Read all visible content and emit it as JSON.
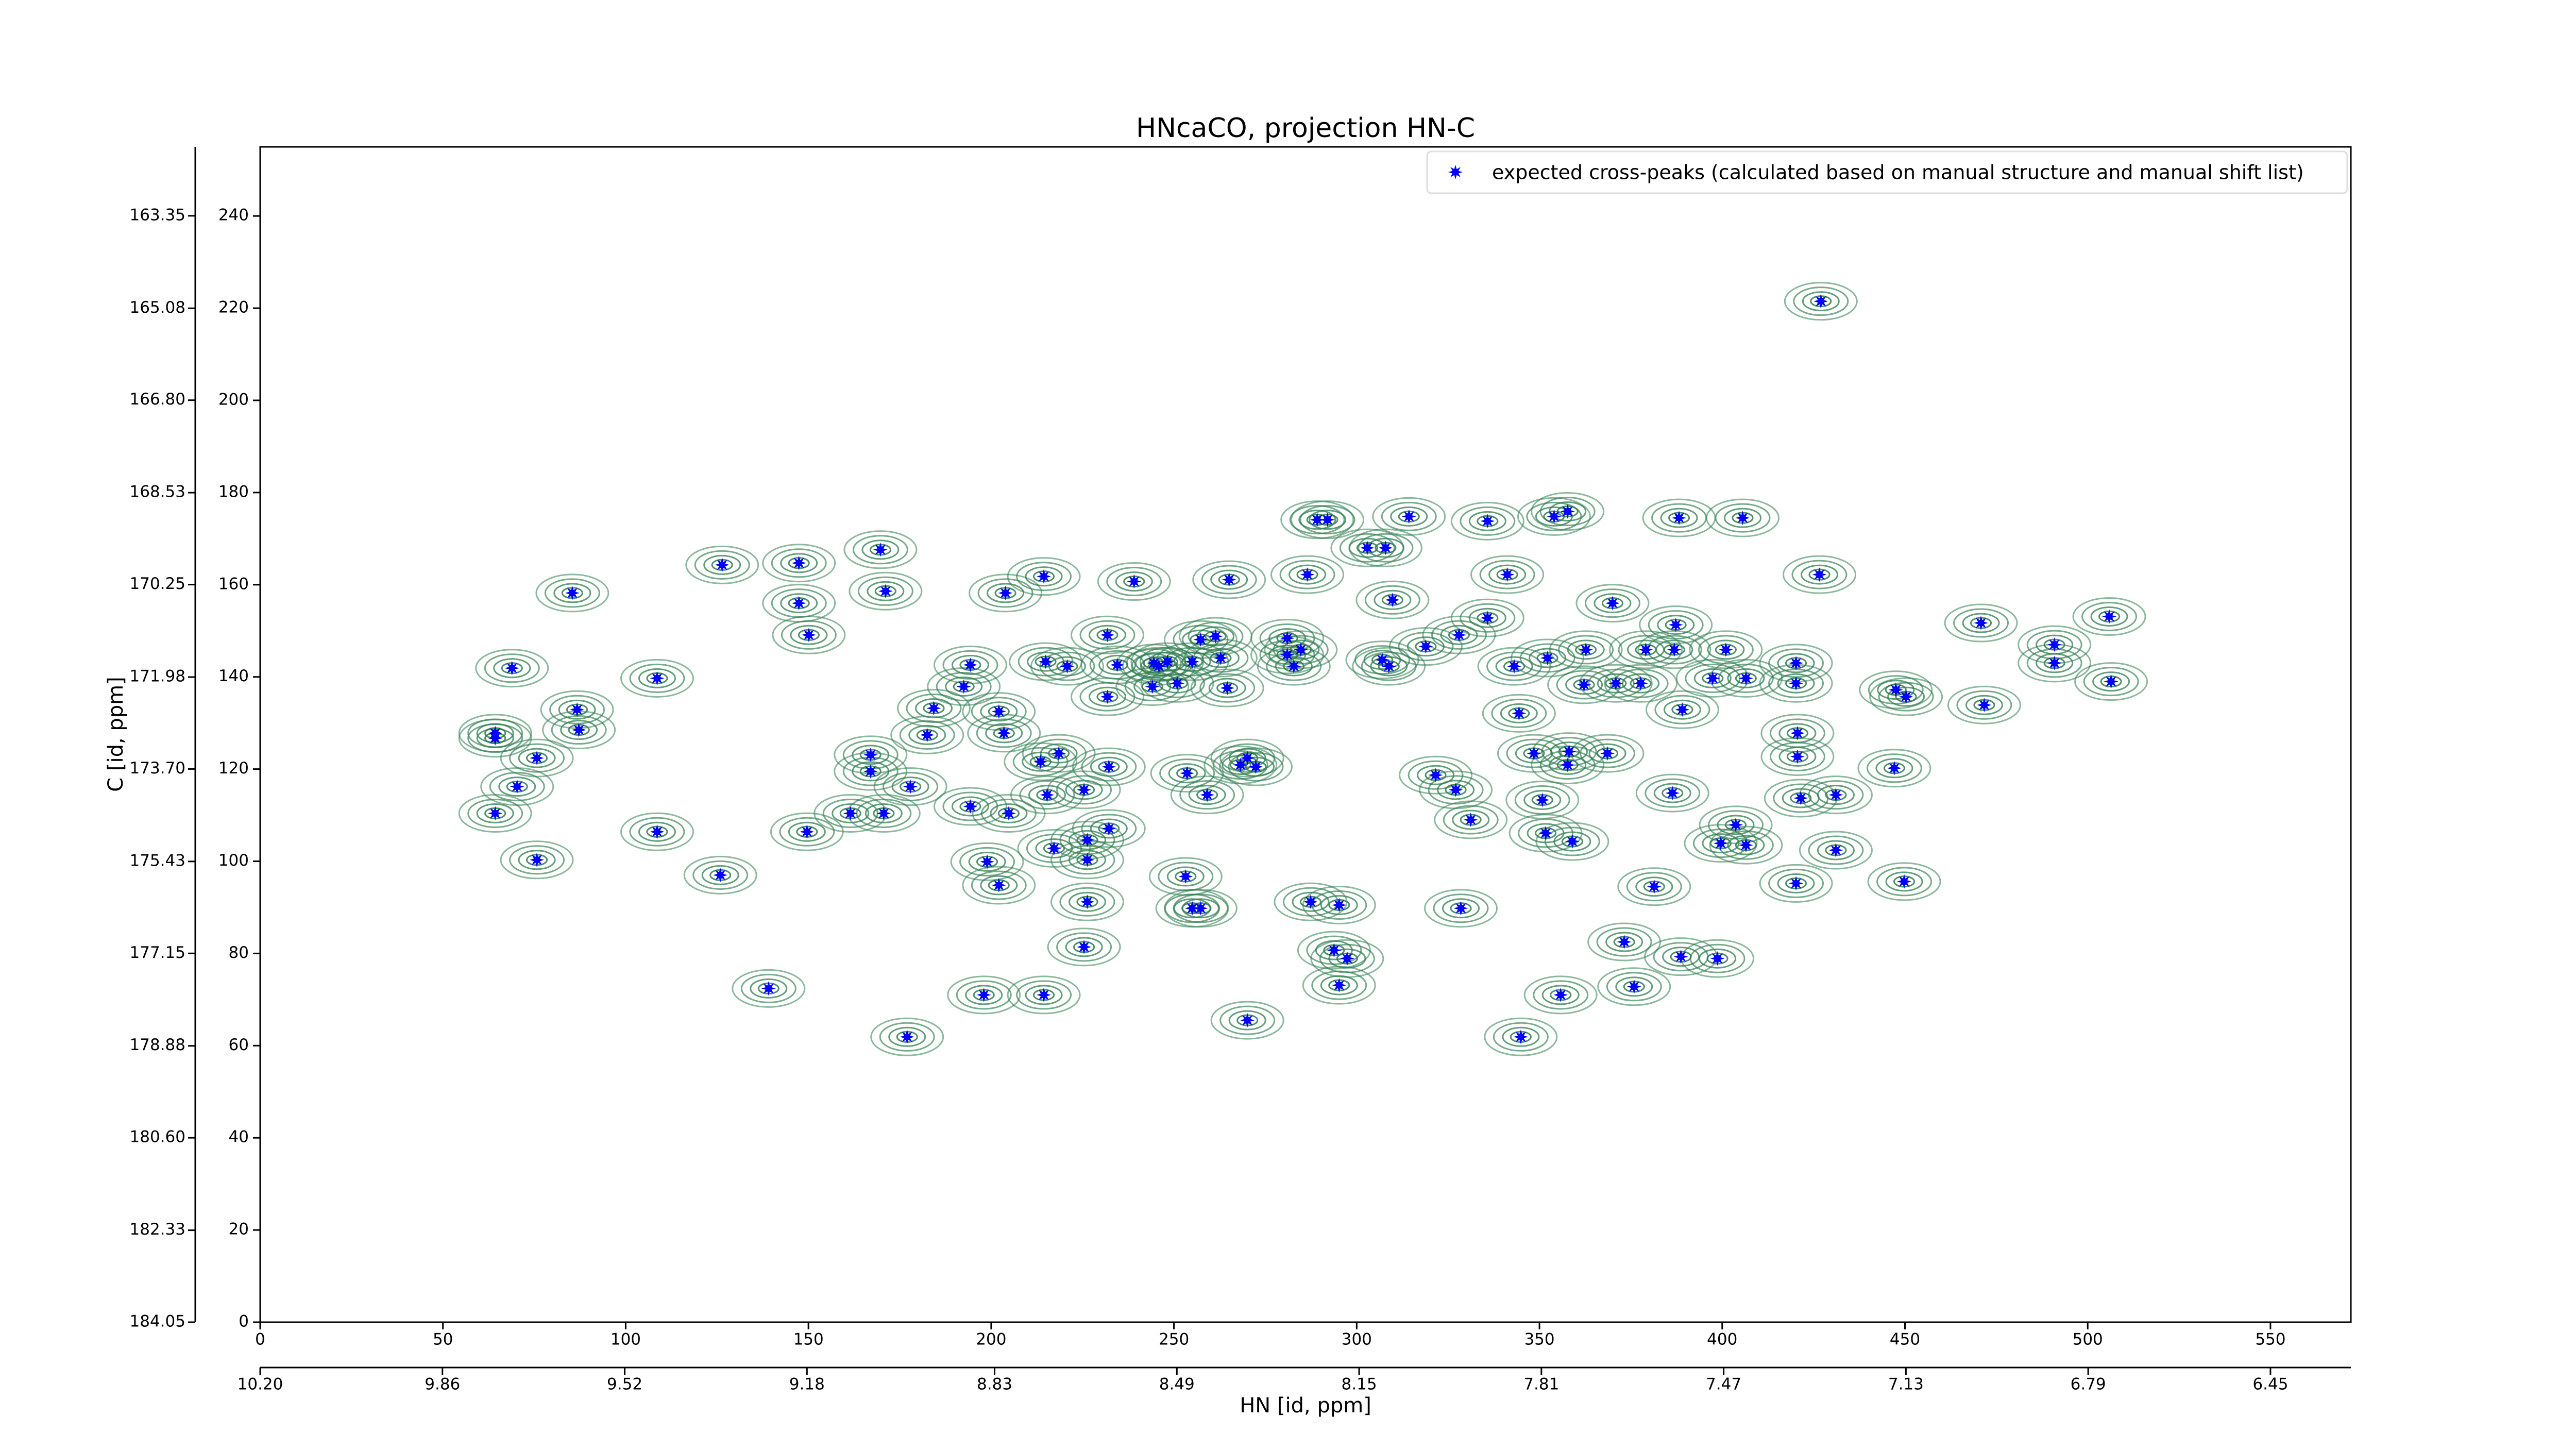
{
  "chart_data": {
    "type": "scatter",
    "title": "HNcaCO, projection HN-C",
    "x_label": "HN [id, ppm]",
    "y_label": "C [id, ppm]",
    "xlim": [
      0,
      572
    ],
    "ylim": [
      0,
      255
    ],
    "xticks": [
      0,
      50,
      100,
      150,
      200,
      250,
      300,
      350,
      400,
      450,
      500,
      550
    ],
    "yticks": [
      0,
      20,
      40,
      60,
      80,
      100,
      120,
      140,
      160,
      180,
      200,
      220,
      240
    ],
    "x2lim": [
      10.2,
      6.3
    ],
    "x2ticks": [
      {
        "value": 10.2,
        "label": "10.20"
      },
      9.86,
      9.52,
      9.18,
      8.83,
      8.49,
      8.15,
      7.81,
      7.47,
      7.13,
      6.79,
      6.45
    ],
    "y2lim": [
      184.05,
      162.06
    ],
    "y2ticks": [
      184.05,
      182.33,
      {
        "value": 180.6,
        "label": "180.60"
      },
      178.88,
      177.15,
      175.43,
      {
        "value": 173.7,
        "label": "173.70"
      },
      171.98,
      170.25,
      168.53,
      {
        "value": 166.8,
        "label": "166.80"
      },
      165.08,
      163.35
    ],
    "legend": "upper right",
    "series": [
      {
        "name": "expected cross-peaks (calculated based on manual structure and manual shift list)",
        "color": "#0000ff",
        "contour_color": "#2e7d4f",
        "x": [
          68.9,
          64.3,
          64.3,
          70.3,
          64.3,
          75.7,
          86.7,
          85.4,
          87.2,
          75.7,
          108.6,
          108.6,
          126.4,
          125.9,
          147.4,
          147.4,
          150.1,
          139.1,
          149.6,
          161.5,
          169.7,
          171.1,
          167.0,
          167.0,
          170.6,
          177.9,
          177.0,
          182.5,
          184.3,
          192.5,
          194.3,
          194.3,
          198.9,
          202.1,
          202.1,
          203.5,
          204.8,
          198.0,
          214.4,
          203.9,
          214.4,
          214.9,
          220.8,
          213.5,
          218.5,
          215.3,
          217.2,
          226.3,
          226.3,
          226.3,
          225.4,
          231.8,
          231.8,
          232.2,
          232.2,
          234.5,
          225.4,
          239.1,
          245.9,
          244.1,
          244.5,
          248.2,
          250.9,
          255.0,
          257.3,
          259.1,
          253.6,
          253.2,
          255.0,
          257.3,
          268.2,
          270.1,
          265.1,
          261.4,
          262.8,
          264.6,
          270.1,
          272.4,
          281.0,
          281.0,
          284.7,
          282.8,
          286.5,
          287.4,
          289.2,
          292.0,
          295.2,
          293.8,
          295.2,
          297.4,
          302.9,
          307.9,
          309.8,
          307.0,
          308.8,
          314.3,
          318.9,
          321.6,
          328.0,
          327.1,
          328.5,
          331.2,
          335.8,
          335.8,
          341.2,
          343.1,
          344.4,
          348.5,
          352.2,
          350.8,
          351.7,
          354.0,
          357.7,
          362.7,
          362.2,
          358.1,
          357.7,
          359.0,
          355.8,
          344.9,
          370.0,
          368.6,
          370.9,
          373.2,
          375.9,
          377.7,
          379.1,
          381.4,
          386.9,
          386.4,
          388.2,
          387.3,
          389.1,
          388.7,
          398.7,
          397.4,
          401.0,
          399.6,
          403.7,
          406.5,
          405.6,
          406.5,
          420.2,
          420.2,
          420.2,
          420.6,
          420.6,
          421.5,
          426.6,
          427.0,
          431.1,
          431.1,
          447.1,
          447.5,
          449.8,
          450.3,
          470.8,
          471.7,
          490.9,
          490.9,
          505.9,
          506.4
        ],
        "y": [
          141.9,
          127.8,
          126.7,
          116.2,
          110.4,
          122.4,
          132.9,
          158.2,
          128.5,
          100.3,
          106.4,
          139.7,
          164.3,
          97.0,
          164.7,
          156.0,
          149.1,
          72.4,
          106.4,
          110.4,
          167.6,
          158.6,
          123.1,
          119.5,
          110.4,
          116.2,
          61.9,
          127.4,
          133.2,
          137.9,
          142.6,
          111.9,
          99.9,
          94.8,
          132.5,
          127.8,
          110.4,
          71.0,
          71.0,
          158.2,
          161.8,
          143.3,
          142.3,
          121.6,
          123.4,
          114.4,
          102.8,
          104.6,
          100.3,
          91.2,
          81.4,
          149.1,
          135.7,
          120.5,
          107.1,
          142.6,
          115.5,
          160.7,
          142.3,
          137.9,
          143.0,
          143.3,
          138.6,
          143.3,
          148.1,
          114.4,
          119.1,
          96.7,
          89.8,
          89.8,
          120.9,
          65.5,
          161.1,
          148.8,
          144.1,
          137.6,
          122.4,
          120.5,
          148.4,
          144.8,
          145.9,
          142.3,
          162.2,
          91.2,
          174.1,
          174.1,
          90.5,
          80.7,
          73.1,
          78.9,
          168.0,
          168.0,
          156.7,
          143.7,
          142.3,
          174.8,
          146.6,
          118.7,
          149.1,
          115.5,
          89.8,
          109.0,
          173.8,
          152.8,
          162.2,
          142.3,
          132.1,
          123.4,
          144.1,
          113.3,
          106.1,
          174.8,
          175.9,
          145.9,
          138.3,
          123.8,
          120.9,
          104.3,
          71.0,
          61.9,
          156.0,
          123.4,
          138.6,
          82.5,
          72.8,
          138.6,
          145.9,
          94.5,
          145.9,
          114.8,
          174.5,
          151.3,
          132.9,
          79.3,
          78.9,
          139.7,
          145.9,
          103.9,
          107.9,
          139.7,
          174.5,
          103.5,
          95.2,
          143.0,
          138.6,
          127.8,
          122.7,
          113.7,
          162.2,
          221.5,
          114.4,
          102.4,
          120.2,
          137.2,
          95.6,
          135.7,
          151.7,
          133.9,
          147.0,
          143.0,
          153.1,
          139.0
        ]
      }
    ]
  }
}
